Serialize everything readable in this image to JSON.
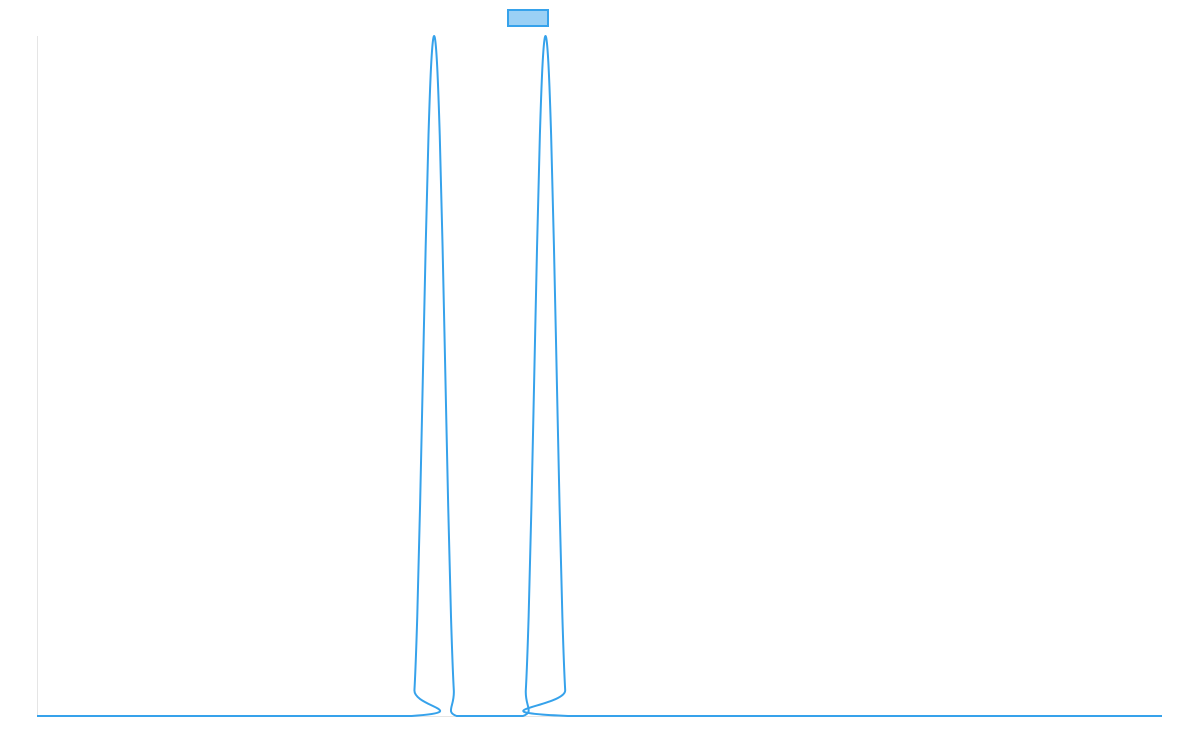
{
  "chart_data": {
    "type": "line",
    "title": "",
    "xlabel": "",
    "ylabel": "",
    "xlim": [
      0,
      100
    ],
    "ylim": [
      0,
      1
    ],
    "grid": false,
    "legend": {
      "position": "top",
      "label": ""
    },
    "colors": {
      "line": "#36a2eb",
      "legend_fill": "#9ad0f5",
      "axis": "#e5e5e5"
    },
    "series": [
      {
        "x": [
          0,
          33.3,
          33.55,
          33.8,
          34.05,
          34.3,
          34.55,
          34.8,
          35.05,
          35.3,
          35.55,
          35.8,
          36.05,
          36.3,
          36.55,
          36.8,
          37.05,
          37.3,
          43.2,
          43.45,
          43.7,
          43.95,
          44.2,
          44.45,
          44.7,
          44.95,
          45.2,
          45.45,
          45.7,
          45.95,
          46.2,
          46.45,
          46.7,
          46.95,
          47.2,
          100
        ],
        "y": [
          0,
          0,
          0.038,
          0.146,
          0.309,
          0.5,
          0.691,
          0.854,
          0.962,
          1,
          0.962,
          0.854,
          0.691,
          0.5,
          0.309,
          0.146,
          0.038,
          0,
          0,
          0.038,
          0.146,
          0.309,
          0.5,
          0.691,
          0.854,
          0.962,
          1,
          0.962,
          0.854,
          0.691,
          0.5,
          0.309,
          0.146,
          0.038,
          0,
          0
        ]
      }
    ]
  }
}
